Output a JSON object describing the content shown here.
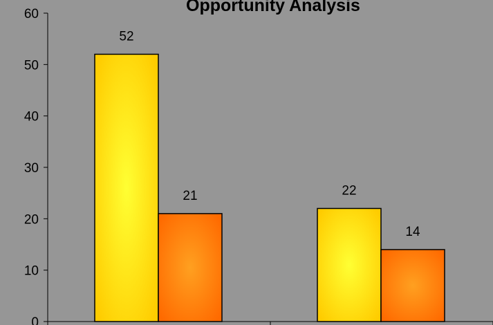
{
  "chart_data": {
    "type": "bar",
    "title": "Opportunity Analysis",
    "categories": [
      "",
      ""
    ],
    "series": [
      {
        "values": [
          52,
          22
        ],
        "color": "#ffd400"
      },
      {
        "values": [
          21,
          14
        ],
        "color": "#ff7a00"
      }
    ],
    "ylim": [
      0,
      60
    ],
    "yticks": [
      "0",
      "10",
      "20",
      "30",
      "40",
      "50",
      "60"
    ],
    "grid": false,
    "legend": "none"
  },
  "colors": {
    "background": "#969696",
    "axis": "#000000"
  }
}
